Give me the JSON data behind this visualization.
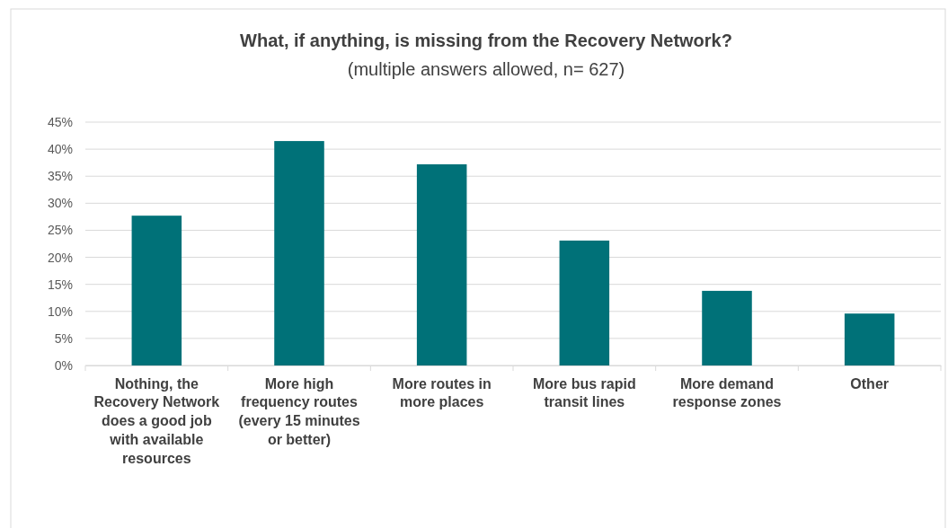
{
  "chart_data": {
    "type": "bar",
    "title": "What, if anything, is missing from the Recovery Network?",
    "subtitle": "(multiple answers allowed, n= 627)",
    "categories": [
      "Nothing, the Recovery Network does a good job with available resources",
      "More high frequency routes (every 15 minutes or better)",
      "More routes in more places",
      "More bus rapid transit lines",
      "More demand response zones",
      "Other"
    ],
    "values": [
      0.277,
      0.415,
      0.372,
      0.231,
      0.138,
      0.096
    ],
    "color": "#007178",
    "ylim": [
      0,
      0.45
    ],
    "yticks": [
      {
        "value": 0,
        "label": "0%"
      },
      {
        "value": 0.05,
        "label": "5%"
      },
      {
        "value": 0.1,
        "label": "10%"
      },
      {
        "value": 0.15,
        "label": "15%"
      },
      {
        "value": 0.2,
        "label": "20%"
      },
      {
        "value": 0.25,
        "label": "25%"
      },
      {
        "value": 0.3,
        "label": "30%"
      },
      {
        "value": 0.35,
        "label": "35%"
      },
      {
        "value": 0.4,
        "label": "40%"
      },
      {
        "value": 0.45,
        "label": "45%"
      }
    ],
    "grid": "y"
  }
}
